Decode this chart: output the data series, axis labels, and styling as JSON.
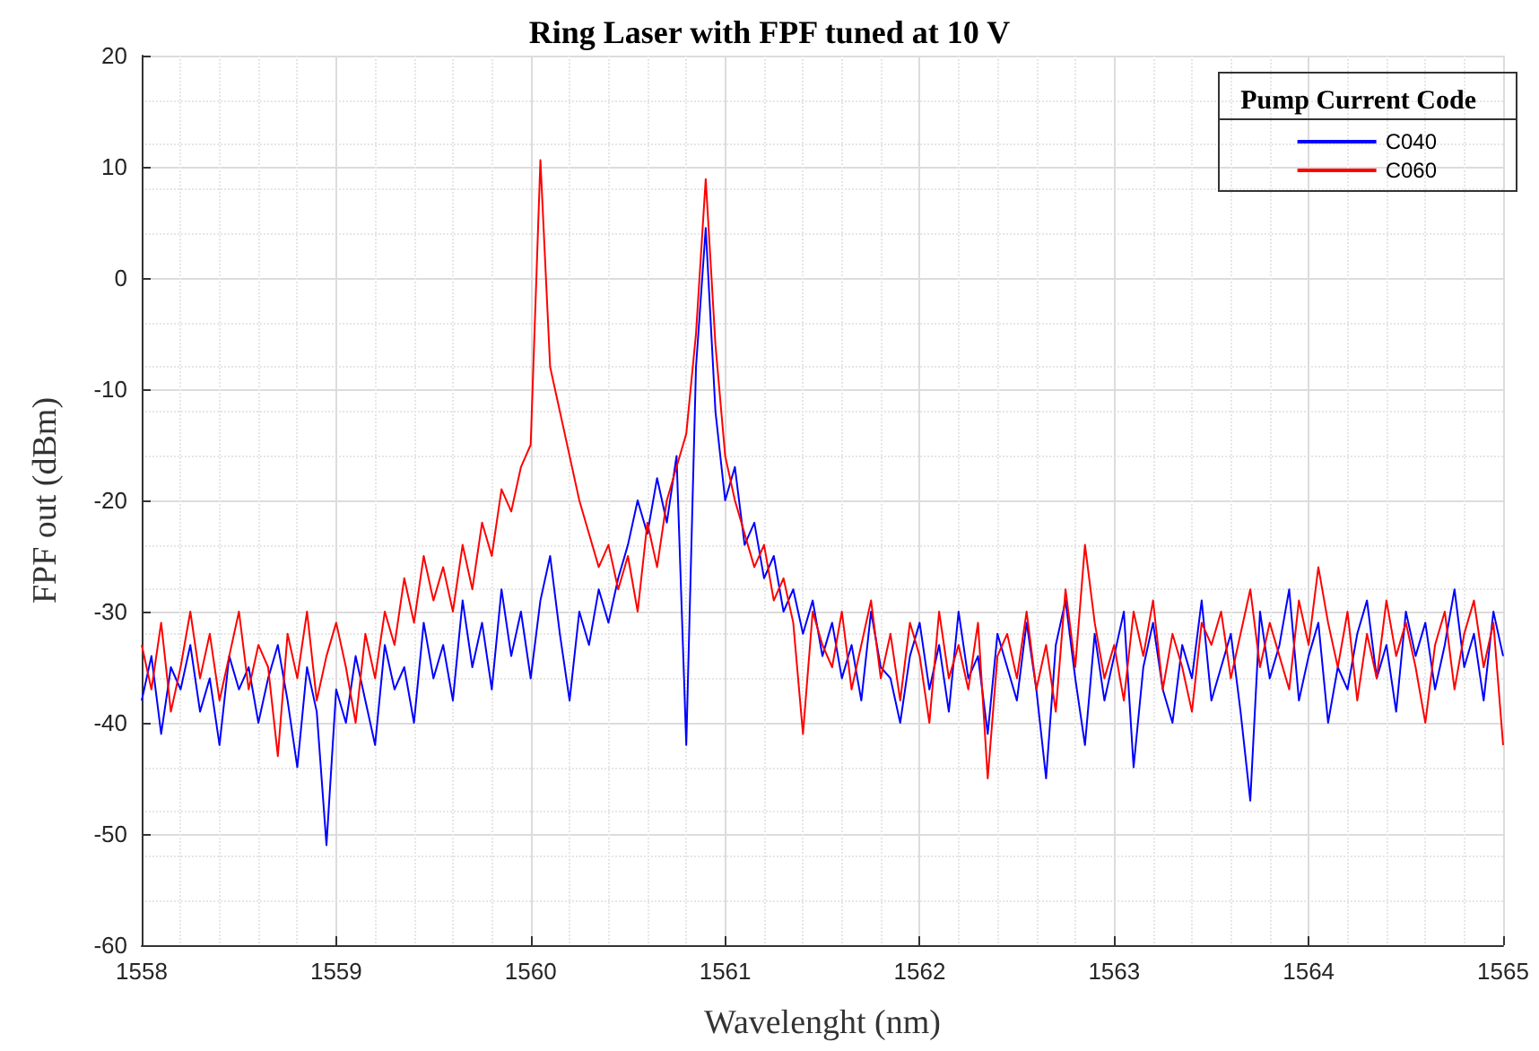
{
  "chart_data": {
    "type": "line",
    "title": "Ring Laser with FPF tuned at 10 V",
    "xlabel": "Wavelenght (nm)",
    "ylabel": "FPF out (dBm)",
    "legend_title": "Pump Current Code",
    "x": [
      1558.0,
      1558.05,
      1558.1,
      1558.15,
      1558.2,
      1558.25,
      1558.3,
      1558.35,
      1558.4,
      1558.45,
      1558.5,
      1558.55,
      1558.6,
      1558.65,
      1558.7,
      1558.75,
      1558.8,
      1558.85,
      1558.9,
      1558.95,
      1559.0,
      1559.05,
      1559.1,
      1559.15,
      1559.2,
      1559.25,
      1559.3,
      1559.35,
      1559.4,
      1559.45,
      1559.5,
      1559.55,
      1559.6,
      1559.65,
      1559.7,
      1559.75,
      1559.8,
      1559.85,
      1559.9,
      1559.95,
      1560.0,
      1560.05,
      1560.1,
      1560.15,
      1560.2,
      1560.25,
      1560.3,
      1560.35,
      1560.4,
      1560.45,
      1560.5,
      1560.55,
      1560.6,
      1560.65,
      1560.7,
      1560.75,
      1560.8,
      1560.85,
      1560.9,
      1560.95,
      1561.0,
      1561.05,
      1561.1,
      1561.15,
      1561.2,
      1561.25,
      1561.3,
      1561.35,
      1561.4,
      1561.45,
      1561.5,
      1561.55,
      1561.6,
      1561.65,
      1561.7,
      1561.75,
      1561.8,
      1561.85,
      1561.9,
      1561.95,
      1562.0,
      1562.05,
      1562.1,
      1562.15,
      1562.2,
      1562.25,
      1562.3,
      1562.35,
      1562.4,
      1562.45,
      1562.5,
      1562.55,
      1562.6,
      1562.65,
      1562.7,
      1562.75,
      1562.8,
      1562.85,
      1562.9,
      1562.95,
      1563.0,
      1563.05,
      1563.1,
      1563.15,
      1563.2,
      1563.25,
      1563.3,
      1563.35,
      1563.4,
      1563.45,
      1563.5,
      1563.55,
      1563.6,
      1563.65,
      1563.7,
      1563.75,
      1563.8,
      1563.85,
      1563.9,
      1563.95,
      1564.0,
      1564.05,
      1564.1,
      1564.15,
      1564.2,
      1564.25,
      1564.3,
      1564.35,
      1564.4,
      1564.45,
      1564.5,
      1564.55,
      1564.6,
      1564.65,
      1564.7,
      1564.75,
      1564.8,
      1564.85,
      1564.9,
      1564.95,
      1565.0
    ],
    "series": [
      {
        "name": "C040",
        "color": "#0000ff",
        "values": [
          -38,
          -34,
          -41,
          -35,
          -37,
          -33,
          -39,
          -36,
          -42,
          -34,
          -37,
          -35,
          -40,
          -36,
          -33,
          -38,
          -44,
          -35,
          -39,
          -51,
          -37,
          -40,
          -34,
          -38,
          -42,
          -33,
          -37,
          -35,
          -40,
          -31,
          -36,
          -33,
          -38,
          -29,
          -35,
          -31,
          -37,
          -28,
          -34,
          -30,
          -36,
          -29,
          -25,
          -32,
          -38,
          -30,
          -33,
          -28,
          -31,
          -27,
          -24,
          -20,
          -23,
          -18,
          -22,
          -16,
          -42,
          -8,
          4.5,
          -12,
          -20,
          -17,
          -24,
          -22,
          -27,
          -25,
          -30,
          -28,
          -32,
          -29,
          -34,
          -31,
          -36,
          -33,
          -38,
          -30,
          -35,
          -36,
          -40,
          -34,
          -31,
          -37,
          -33,
          -39,
          -30,
          -36,
          -34,
          -41,
          -32,
          -35,
          -38,
          -31,
          -37,
          -45,
          -33,
          -29,
          -36,
          -42,
          -32,
          -38,
          -34,
          -30,
          -44,
          -35,
          -31,
          -37,
          -40,
          -33,
          -36,
          -29,
          -38,
          -35,
          -32,
          -39,
          -47,
          -30,
          -36,
          -33,
          -28,
          -38,
          -34,
          -31,
          -40,
          -35,
          -37,
          -32,
          -29,
          -36,
          -33,
          -39,
          -30,
          -34,
          -31,
          -37,
          -33,
          -28,
          -35,
          -32,
          -38,
          -30,
          -34
        ]
      },
      {
        "name": "C060",
        "color": "#ff0000",
        "values": [
          -33,
          -37,
          -31,
          -39,
          -35,
          -30,
          -36,
          -32,
          -38,
          -34,
          -30,
          -37,
          -33,
          -35,
          -43,
          -32,
          -36,
          -30,
          -38,
          -34,
          -31,
          -35,
          -40,
          -32,
          -36,
          -30,
          -33,
          -27,
          -31,
          -25,
          -29,
          -26,
          -30,
          -24,
          -28,
          -22,
          -25,
          -19,
          -21,
          -17,
          -15,
          10.6,
          -8,
          -12,
          -16,
          -20,
          -23,
          -26,
          -24,
          -28,
          -25,
          -30,
          -22,
          -26,
          -20,
          -17,
          -14,
          -5,
          8.9,
          -6,
          -16,
          -20,
          -23,
          -26,
          -24,
          -29,
          -27,
          -31,
          -41,
          -30,
          -33,
          -35,
          -30,
          -37,
          -33,
          -29,
          -36,
          -32,
          -38,
          -31,
          -34,
          -40,
          -30,
          -36,
          -33,
          -37,
          -31,
          -45,
          -34,
          -32,
          -36,
          -30,
          -37,
          -33,
          -39,
          -28,
          -35,
          -24,
          -31,
          -36,
          -33,
          -38,
          -30,
          -34,
          -29,
          -37,
          -32,
          -35,
          -39,
          -31,
          -33,
          -30,
          -36,
          -32,
          -28,
          -35,
          -31,
          -34,
          -37,
          -29,
          -33,
          -26,
          -31,
          -35,
          -30,
          -38,
          -32,
          -36,
          -29,
          -34,
          -31,
          -35,
          -40,
          -33,
          -30,
          -37,
          -32,
          -29,
          -35,
          -31,
          -42
        ]
      }
    ],
    "xlim": [
      1558,
      1565
    ],
    "xticks": [
      1558,
      1559,
      1560,
      1561,
      1562,
      1563,
      1564,
      1565
    ],
    "ylim": [
      -60,
      20
    ],
    "yticks": [
      -60,
      -50,
      -40,
      -30,
      -20,
      -10,
      0,
      10,
      20
    ],
    "grid": true,
    "legend": "top right",
    "marker": "none",
    "line_style": "solid"
  }
}
